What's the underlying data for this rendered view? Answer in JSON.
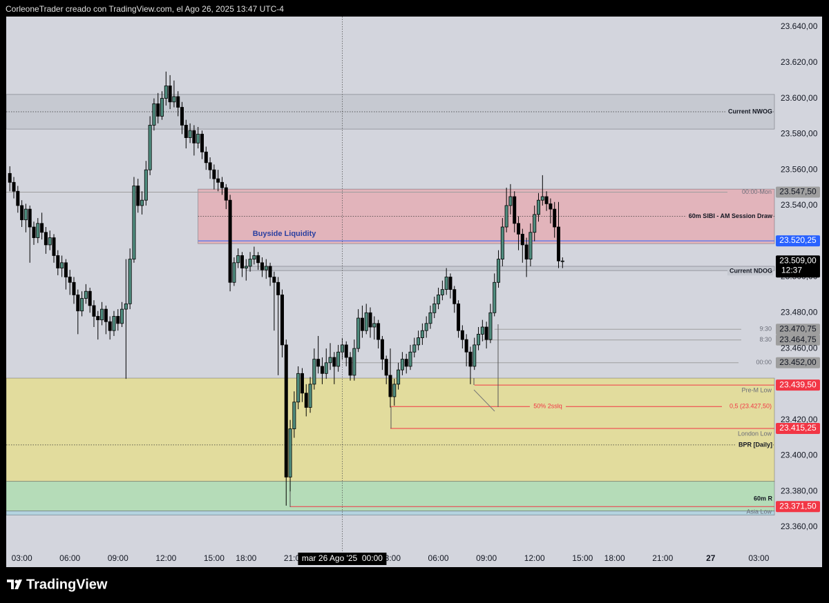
{
  "header": "CorleoneTrader creado con TradingView.com, el Ago 26, 2025 13:47 UTC-4",
  "footer": "TradingView",
  "chart_data": {
    "type": "candlestick",
    "up_color": "#4f8c7e",
    "down_color": "#000000",
    "background": "#d3d5dd",
    "xlim": [
      -15.9,
      175.9
    ],
    "ylim": [
      23337.6,
      23645.8
    ],
    "xticks": [
      {
        "value": -12,
        "label": "03:00"
      },
      {
        "value": 0,
        "label": "06:00"
      },
      {
        "value": 12,
        "label": "09:00"
      },
      {
        "value": 24,
        "label": "12:00"
      },
      {
        "value": 36,
        "label": "15:00"
      },
      {
        "value": 44,
        "label": "18:00"
      },
      {
        "value": 56,
        "label": "21:00"
      },
      {
        "value": 80,
        "label": "03:00"
      },
      {
        "value": 92,
        "label": "06:00"
      },
      {
        "value": 104,
        "label": "09:00"
      },
      {
        "value": 116,
        "label": "12:00"
      },
      {
        "value": 128,
        "label": "15:00"
      },
      {
        "value": 136,
        "label": "18:00"
      },
      {
        "value": 148,
        "label": "21:00"
      },
      {
        "value": 160,
        "label": "27"
      },
      {
        "value": 172,
        "label": "03:00"
      }
    ],
    "yticks": [
      {
        "value": 23640,
        "label": "23.640,00"
      },
      {
        "value": 23620,
        "label": "23.620,00"
      },
      {
        "value": 23600,
        "label": "23.600,00"
      },
      {
        "value": 23580,
        "label": "23.580,00"
      },
      {
        "value": 23560,
        "label": "23.560,00"
      },
      {
        "value": 23540,
        "label": "23.540,00"
      },
      {
        "value": 23500,
        "label": "23.500,00"
      },
      {
        "value": 23480,
        "label": "23.480,00"
      },
      {
        "value": 23460,
        "label": "23.460,00"
      },
      {
        "value": 23420,
        "label": "23.420,00"
      },
      {
        "value": 23400,
        "label": "23.400,00"
      },
      {
        "value": 23380,
        "label": "23.380,00"
      },
      {
        "value": 23360,
        "label": "23.360,00"
      }
    ],
    "zones": [
      {
        "label": "Current NWOG",
        "top": 23602.2,
        "bottom": 23582.8,
        "mid": 23592.5,
        "color": "#c6c9d1",
        "x_start": -15.9
      },
      {
        "label": "60m SIBI - AM Session Draw",
        "top": 23549.2,
        "bottom": 23518.7,
        "mid": 23534,
        "color": "#e2b4bb",
        "x_start": 32
      },
      {
        "label": "Current NDOG",
        "top": 23506,
        "bottom": 23503.6,
        "color": "#c6c9d1",
        "x_start": 44
      },
      {
        "label": "BPR [Daily]",
        "top": 23443.4,
        "bottom": 23385.6,
        "mid": 23406,
        "color": "#e2dc9d",
        "x_start": -15.9
      },
      {
        "label": "60m R",
        "top": 23385.6,
        "bottom": 23369,
        "color": "#b5dcb8",
        "x_start": -15.9
      },
      {
        "top": 23369,
        "bottom": 23366.7,
        "color": "#b3d3df",
        "x_start": -15.9
      }
    ],
    "liquidity": {
      "label": "Buyside Liquidity",
      "value": 23520.25,
      "value_label": "23.520,25",
      "color": "#2962ff",
      "x_start": 32
    },
    "levels": [
      {
        "label": "00:00-Mon",
        "value": 23547.5,
        "value_label": "23.547,50",
        "color": "#9e9e9e",
        "x_start": -15.9
      },
      {
        "label": "9:30",
        "value": 23470.75,
        "value_label": "23.470,75",
        "color": "#9e9e9e",
        "x_start": 106
      },
      {
        "label": "8:30",
        "value": 23464.75,
        "value_label": "23.464,75",
        "color": "#9e9e9e",
        "x_start": 103
      },
      {
        "label": "00:00",
        "value": 23452,
        "value_label": "23.452,00",
        "color": "#9e9e9e",
        "x_start": 68
      },
      {
        "label": "Pre-M Low",
        "value": 23439.5,
        "value_label": "23.439,50",
        "color": "#f23645",
        "x_start": 101
      },
      {
        "label": "London Low",
        "value": 23415.25,
        "value_label": "23.415,25",
        "color": "#f23645",
        "x_start": 80
      },
      {
        "label": "Asia Low",
        "value": 23371.5,
        "value_label": "23.371,50",
        "color": "#f23645",
        "x_start": 55
      }
    ],
    "fib": {
      "label": "50% 2sslq",
      "value": 23427.5,
      "value_label": "0,5 (23.427,50)",
      "color": "#f23645",
      "x_start": 80
    },
    "current_price": {
      "value": 23509,
      "value_label": "23.509,00",
      "countdown": "12:37"
    },
    "crosshair": {
      "x": 68,
      "label": "mar 26 Ago '25  00:00"
    },
    "x": [
      -15,
      -14,
      -13,
      -12,
      -11,
      -10,
      -9,
      -8,
      -7,
      -6,
      -5,
      -4,
      -3,
      -2,
      -1,
      0,
      1,
      2,
      3,
      4,
      5,
      6,
      7,
      8,
      9,
      10,
      11,
      12,
      13,
      14,
      15,
      16,
      17,
      18,
      19,
      20,
      21,
      22,
      23,
      24,
      25,
      26,
      27,
      28,
      29,
      30,
      31,
      32,
      33,
      34,
      35,
      36,
      37,
      38,
      39,
      40,
      41,
      42,
      43,
      44,
      45,
      46,
      47,
      48,
      49,
      50,
      51,
      52,
      53,
      54,
      55,
      56,
      57,
      58,
      59,
      60,
      61,
      62,
      63,
      64,
      65,
      66,
      67,
      68,
      69,
      70,
      71,
      72,
      73,
      74,
      75,
      76,
      77,
      78,
      79,
      80,
      81,
      82,
      83,
      84,
      85,
      86,
      87,
      88,
      89,
      90,
      91,
      92,
      93,
      94,
      95,
      96,
      97,
      98,
      99,
      100,
      101,
      102,
      103,
      104,
      105,
      106,
      107,
      108,
      109,
      110,
      111,
      112,
      113,
      114,
      115,
      116,
      117,
      118,
      119,
      120,
      121,
      122,
      123
    ],
    "candles": [
      [
        23558,
        23562,
        23548,
        23553
      ],
      [
        23553,
        23556,
        23544,
        23548
      ],
      [
        23548,
        23551,
        23536,
        23540
      ],
      [
        23540,
        23543,
        23528,
        23532
      ],
      [
        23532,
        23541,
        23525,
        23538
      ],
      [
        23538,
        23540,
        23508,
        23528
      ],
      [
        23528,
        23531,
        23518,
        23522
      ],
      [
        23522,
        23533,
        23519,
        23530
      ],
      [
        23530,
        23536,
        23521,
        23525
      ],
      [
        23525,
        23528,
        23513,
        23518
      ],
      [
        23518,
        23526,
        23515,
        23522
      ],
      [
        23522,
        23524,
        23508,
        23512
      ],
      [
        23512,
        23515,
        23501,
        23505
      ],
      [
        23505,
        23512,
        23500,
        23508
      ],
      [
        23508,
        23510,
        23493,
        23500
      ],
      [
        23500,
        23504,
        23490,
        23497
      ],
      [
        23497,
        23500,
        23485,
        23490
      ],
      [
        23490,
        23493,
        23468,
        23481
      ],
      [
        23481,
        23492,
        23478,
        23488
      ],
      [
        23488,
        23496,
        23485,
        23492
      ],
      [
        23492,
        23494,
        23480,
        23484
      ],
      [
        23484,
        23487,
        23472,
        23478
      ],
      [
        23478,
        23481,
        23465,
        23476
      ],
      [
        23476,
        23486,
        23473,
        23482
      ],
      [
        23482,
        23484,
        23468,
        23475
      ],
      [
        23475,
        23478,
        23465,
        23470
      ],
      [
        23470,
        23481,
        23467,
        23478
      ],
      [
        23478,
        23482,
        23470,
        23474
      ],
      [
        23474,
        23486,
        23472,
        23482
      ],
      [
        23482,
        23510,
        23443,
        23485
      ],
      [
        23485,
        23516,
        23482,
        23510
      ],
      [
        23510,
        23556,
        23508,
        23551
      ],
      [
        23551,
        23555,
        23536,
        23540
      ],
      [
        23540,
        23548,
        23535,
        23543
      ],
      [
        23543,
        23565,
        23540,
        23560
      ],
      [
        23560,
        23590,
        23557,
        23585
      ],
      [
        23585,
        23600,
        23582,
        23597
      ],
      [
        23597,
        23603,
        23586,
        23590
      ],
      [
        23590,
        23604,
        23588,
        23600
      ],
      [
        23600,
        23615,
        23596,
        23607
      ],
      [
        23607,
        23613,
        23594,
        23598
      ],
      [
        23598,
        23610,
        23595,
        23601
      ],
      [
        23601,
        23604,
        23590,
        23595
      ],
      [
        23595,
        23598,
        23580,
        23585
      ],
      [
        23585,
        23588,
        23572,
        23578
      ],
      [
        23578,
        23586,
        23575,
        23582
      ],
      [
        23582,
        23585,
        23568,
        23575
      ],
      [
        23575,
        23584,
        23572,
        23580
      ],
      [
        23580,
        23582,
        23566,
        23570
      ],
      [
        23570,
        23573,
        23560,
        23564
      ],
      [
        23564,
        23567,
        23555,
        23560
      ],
      [
        23560,
        23563,
        23549,
        23555
      ],
      [
        23555,
        23560,
        23548,
        23553
      ],
      [
        23553,
        23556,
        23546,
        23550
      ],
      [
        23550,
        23552,
        23538,
        23543
      ],
      [
        23543,
        23546,
        23492,
        23497
      ],
      [
        23497,
        23511,
        23495,
        23508
      ],
      [
        23508,
        23516,
        23505,
        23512
      ],
      [
        23512,
        23514,
        23500,
        23505
      ],
      [
        23505,
        23510,
        23498,
        23506
      ],
      [
        23506,
        23514,
        23503,
        23510
      ],
      [
        23510,
        23517,
        23507,
        23512
      ],
      [
        23512,
        23514,
        23504,
        23508
      ],
      [
        23508,
        23511,
        23500,
        23504
      ],
      [
        23504,
        23510,
        23499,
        23506
      ],
      [
        23506,
        23508,
        23495,
        23500
      ],
      [
        23500,
        23503,
        23470,
        23497
      ],
      [
        23497,
        23500,
        23445,
        23490
      ],
      [
        23490,
        23493,
        23455,
        23462
      ],
      [
        23462,
        23465,
        23372,
        23388
      ],
      [
        23388,
        23420,
        23380,
        23415
      ],
      [
        23415,
        23436,
        23410,
        23430
      ],
      [
        23430,
        23450,
        23426,
        23446
      ],
      [
        23446,
        23449,
        23430,
        23435
      ],
      [
        23435,
        23440,
        23422,
        23427
      ],
      [
        23427,
        23444,
        23424,
        23440
      ],
      [
        23440,
        23460,
        23437,
        23454
      ],
      [
        23454,
        23467,
        23446,
        23450
      ],
      [
        23450,
        23455,
        23440,
        23446
      ],
      [
        23446,
        23460,
        23443,
        23452
      ],
      [
        23452,
        23463,
        23448,
        23455
      ],
      [
        23455,
        23458,
        23440,
        23450
      ],
      [
        23450,
        23462,
        23447,
        23458
      ],
      [
        23458,
        23466,
        23454,
        23462
      ],
      [
        23462,
        23464,
        23450,
        23455
      ],
      [
        23455,
        23458,
        23442,
        23445
      ],
      [
        23445,
        23465,
        23442,
        23460
      ],
      [
        23460,
        23482,
        23458,
        23477
      ],
      [
        23477,
        23484,
        23466,
        23470
      ],
      [
        23470,
        23485,
        23468,
        23480
      ],
      [
        23480,
        23483,
        23466,
        23472
      ],
      [
        23472,
        23478,
        23465,
        23474
      ],
      [
        23474,
        23476,
        23460,
        23465
      ],
      [
        23465,
        23467,
        23448,
        23454
      ],
      [
        23454,
        23456,
        23440,
        23445
      ],
      [
        23445,
        23460,
        23427,
        23433
      ],
      [
        23433,
        23443,
        23428,
        23440
      ],
      [
        23440,
        23452,
        23437,
        23448
      ],
      [
        23448,
        23458,
        23445,
        23454
      ],
      [
        23454,
        23457,
        23446,
        23450
      ],
      [
        23450,
        23462,
        23448,
        23458
      ],
      [
        23458,
        23466,
        23455,
        23462
      ],
      [
        23462,
        23470,
        23459,
        23466
      ],
      [
        23466,
        23474,
        23462,
        23470
      ],
      [
        23470,
        23478,
        23466,
        23474
      ],
      [
        23474,
        23484,
        23471,
        23480
      ],
      [
        23480,
        23489,
        23477,
        23485
      ],
      [
        23485,
        23494,
        23482,
        23490
      ],
      [
        23490,
        23498,
        23487,
        23493
      ],
      [
        23493,
        23505,
        23490,
        23500
      ],
      [
        23500,
        23502,
        23488,
        23493
      ],
      [
        23493,
        23495,
        23480,
        23485
      ],
      [
        23485,
        23487,
        23466,
        23470
      ],
      [
        23470,
        23473,
        23460,
        23465
      ],
      [
        23465,
        23468,
        23450,
        23458
      ],
      [
        23458,
        23461,
        23440,
        23450
      ],
      [
        23450,
        23466,
        23448,
        23462
      ],
      [
        23462,
        23472,
        23459,
        23468
      ],
      [
        23468,
        23476,
        23464,
        23472
      ],
      [
        23472,
        23475,
        23460,
        23465
      ],
      [
        23465,
        23485,
        23463,
        23480
      ],
      [
        23480,
        23502,
        23478,
        23497
      ],
      [
        23497,
        23515,
        23494,
        23510
      ],
      [
        23510,
        23533,
        23506,
        23528
      ],
      [
        23528,
        23550,
        23525,
        23540
      ],
      [
        23540,
        23552,
        23535,
        23545
      ],
      [
        23545,
        23548,
        23525,
        23530
      ],
      [
        23530,
        23534,
        23515,
        23524
      ],
      [
        23524,
        23527,
        23508,
        23518
      ],
      [
        23518,
        23522,
        23500,
        23510
      ],
      [
        23510,
        23530,
        23506,
        23525
      ],
      [
        23525,
        23540,
        23520,
        23535
      ],
      [
        23535,
        23547,
        23531,
        23543
      ],
      [
        23543,
        23557,
        23540,
        23545
      ],
      [
        23545,
        23548,
        23537,
        23541
      ],
      [
        23541,
        23544,
        23530,
        23538
      ],
      [
        23538,
        23542,
        23522,
        23528
      ],
      [
        23528,
        23542,
        23505,
        23509
      ],
      [
        23509,
        23511,
        23505,
        23509
      ]
    ]
  }
}
